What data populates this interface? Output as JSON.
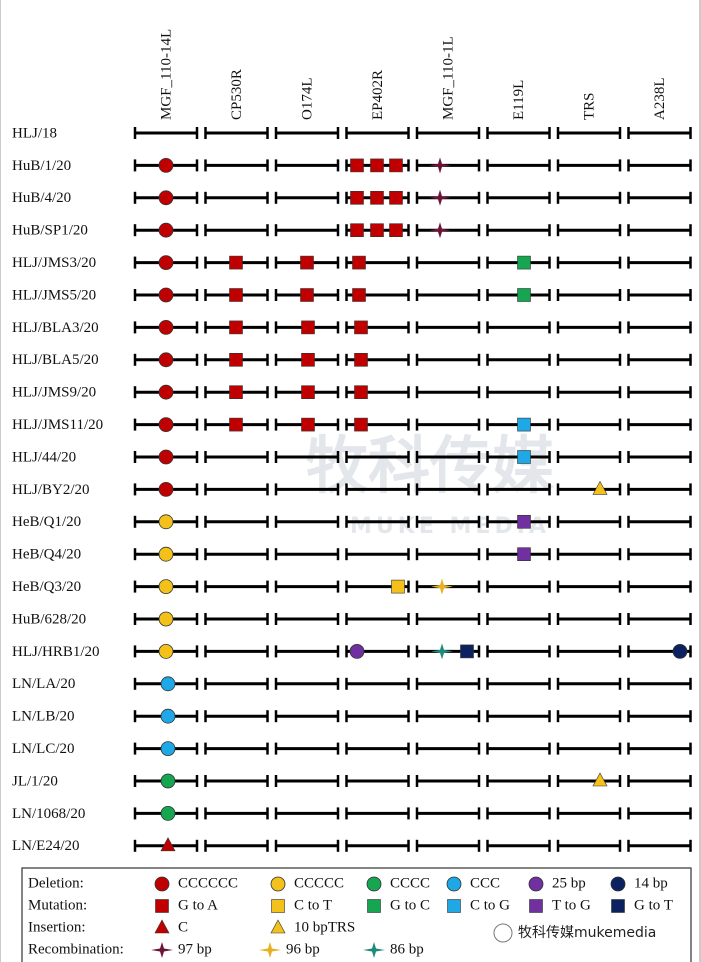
{
  "columns": [
    "MGF_110-14L",
    "CP530R",
    "O174L",
    "EP402R",
    "MGF_110-1L",
    "E119L",
    "TRS",
    "A238L"
  ],
  "rows": [
    "HLJ/18",
    "HuB/1/20",
    "HuB/4/20",
    "HuB/SP1/20",
    "HLJ/JMS3/20",
    "HLJ/JMS5/20",
    "HLJ/BLA3/20",
    "HLJ/BLA5/20",
    "HLJ/JMS9/20",
    "HLJ/JMS11/20",
    "HLJ/44/20",
    "HLJ/BY2/20",
    "HeB/Q1/20",
    "HeB/Q4/20",
    "HeB/Q3/20",
    "HuB/628/20",
    "HLJ/HRB1/20",
    "LN/LA/20",
    "LN/LB/20",
    "LN/LC/20",
    "JL/1/20",
    "LN/1068/20",
    "LN/E24/20"
  ],
  "legend": [
    {
      "label": "Deletion:",
      "items": [
        "CCCCCC",
        "CCCCC",
        "CCCC",
        "CCC",
        "25 bp",
        "14 bp"
      ]
    },
    {
      "label": "Mutation:",
      "items": [
        "G to A",
        "C to T",
        "G to C",
        "C to G",
        "T to G",
        "G to T"
      ]
    },
    {
      "label": "Insertion:",
      "items": [
        "C",
        "10 bpTRS"
      ]
    },
    {
      "label": "Recombination:",
      "items": [
        "97 bp",
        "96 bp",
        "86 bp"
      ]
    }
  ],
  "watermark": {
    "title": "牧科传媒",
    "subtitle": "MUKE MEDIA"
  },
  "footer": "牧科传媒mukemedia"
}
